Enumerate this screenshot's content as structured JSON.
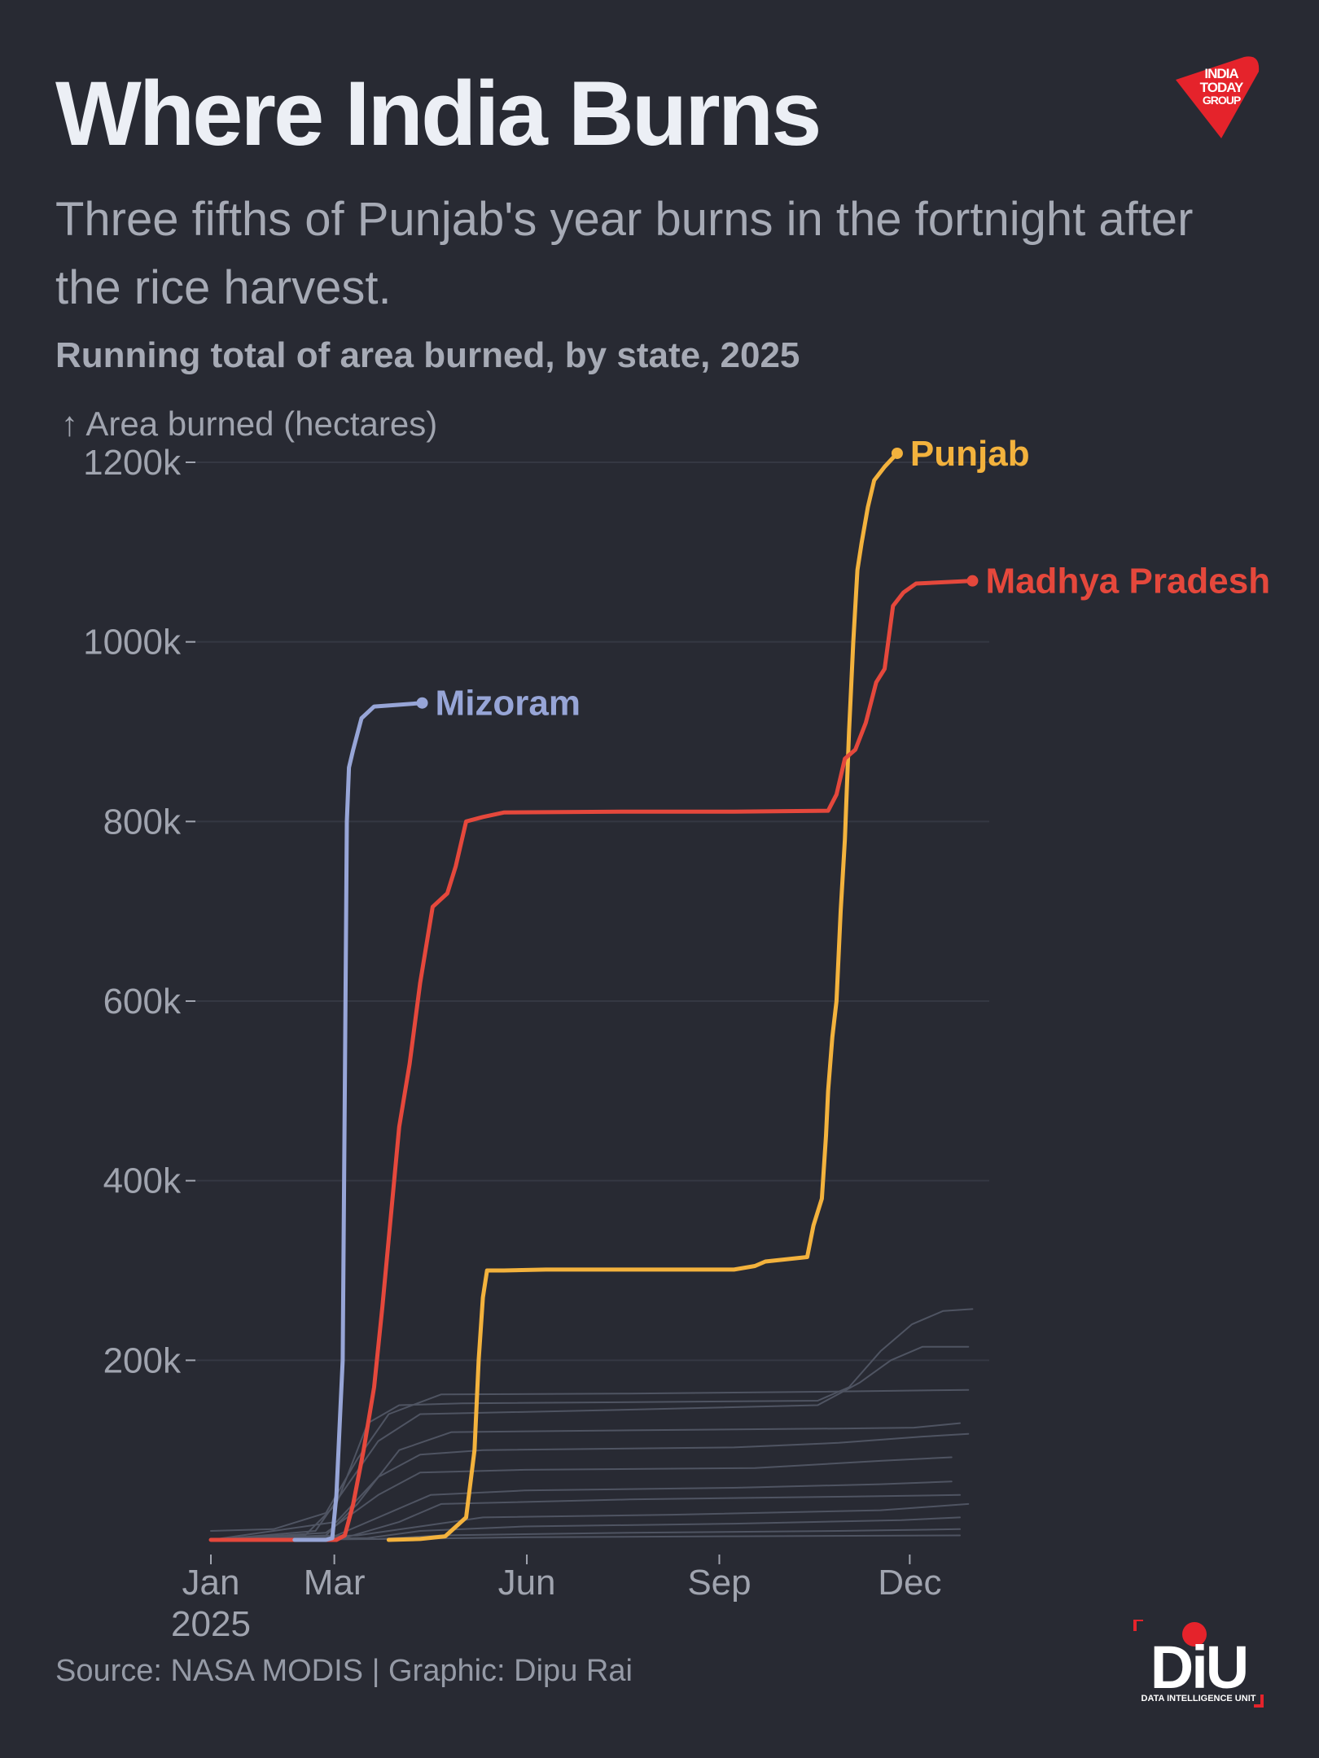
{
  "title": "Where India Burns",
  "subtitle": "Three fifths of Punjab's year burns in the fortnight after the rice harvest.",
  "chart_caption": "Running total of area burned, by state, 2025",
  "source": "Source: NASA MODIS | Graphic: Dipu Rai",
  "logos": {
    "publisher": [
      "INDIA",
      "TODAY",
      "GROUP"
    ],
    "unit_mark": "DiU",
    "unit_name": "DATA INTELLIGENCE UNIT"
  },
  "colors": {
    "background": "#282a33",
    "punjab": "#f3b23d",
    "madhya_pradesh": "#e5483c",
    "mizoram": "#97a5d7",
    "other_states": "#4f5462",
    "grid": "#353843",
    "axis_text": "#a0a4af",
    "logo_red": "#e5232b"
  },
  "chart_data": {
    "type": "line",
    "ylabel": "↑ Area burned (hectares)",
    "xlabel": "",
    "x_ticks": [
      {
        "day": 0,
        "label": "Jan",
        "sublabel": "2025"
      },
      {
        "day": 59,
        "label": "Mar"
      },
      {
        "day": 151,
        "label": "Jun"
      },
      {
        "day": 243,
        "label": "Sep"
      },
      {
        "day": 334,
        "label": "Dec"
      }
    ],
    "y_ticks": [
      200000,
      400000,
      600000,
      800000,
      1000000,
      1200000
    ],
    "y_tick_labels": [
      "200k",
      "400k",
      "600k",
      "800k",
      "1000k",
      "1200k"
    ],
    "xlim_days": [
      0,
      372
    ],
    "ylim": [
      0,
      1200000
    ],
    "grid": "horizontal",
    "x_unit": "day of year 2025",
    "series": [
      {
        "name": "Punjab",
        "color_key": "punjab",
        "label_end": true,
        "points": [
          [
            85,
            0
          ],
          [
            100,
            1000
          ],
          [
            112,
            4000
          ],
          [
            122,
            25000
          ],
          [
            126,
            100000
          ],
          [
            128,
            200000
          ],
          [
            130,
            270000
          ],
          [
            132,
            300000
          ],
          [
            140,
            300000
          ],
          [
            160,
            301000
          ],
          [
            200,
            301000
          ],
          [
            250,
            301000
          ],
          [
            260,
            305000
          ],
          [
            265,
            310000
          ],
          [
            285,
            315000
          ],
          [
            288,
            350000
          ],
          [
            292,
            380000
          ],
          [
            294,
            450000
          ],
          [
            295,
            500000
          ],
          [
            297,
            560000
          ],
          [
            299,
            600000
          ],
          [
            301,
            700000
          ],
          [
            303,
            780000
          ],
          [
            305,
            900000
          ],
          [
            307,
            1000000
          ],
          [
            309,
            1080000
          ],
          [
            311,
            1110000
          ],
          [
            314,
            1150000
          ],
          [
            317,
            1180000
          ],
          [
            322,
            1195000
          ],
          [
            328,
            1210000
          ]
        ]
      },
      {
        "name": "Madhya Pradesh",
        "color_key": "madhya_pradesh",
        "label_end": true,
        "points": [
          [
            0,
            0
          ],
          [
            60,
            0
          ],
          [
            64,
            5000
          ],
          [
            68,
            40000
          ],
          [
            73,
            100000
          ],
          [
            78,
            170000
          ],
          [
            82,
            260000
          ],
          [
            86,
            360000
          ],
          [
            90,
            460000
          ],
          [
            95,
            530000
          ],
          [
            100,
            620000
          ],
          [
            106,
            705000
          ],
          [
            113,
            720000
          ],
          [
            117,
            750000
          ],
          [
            122,
            800000
          ],
          [
            130,
            805000
          ],
          [
            140,
            810000
          ],
          [
            200,
            811000
          ],
          [
            250,
            811000
          ],
          [
            295,
            812000
          ],
          [
            299,
            830000
          ],
          [
            303,
            870000
          ],
          [
            308,
            880000
          ],
          [
            313,
            910000
          ],
          [
            318,
            955000
          ],
          [
            322,
            970000
          ],
          [
            326,
            1040000
          ],
          [
            331,
            1055000
          ],
          [
            337,
            1065000
          ],
          [
            364,
            1068000
          ]
        ]
      },
      {
        "name": "Mizoram",
        "color_key": "mizoram",
        "label_end": true,
        "points": [
          [
            40,
            0
          ],
          [
            55,
            0
          ],
          [
            58,
            2000
          ],
          [
            60,
            50000
          ],
          [
            62,
            150000
          ],
          [
            63,
            200000
          ],
          [
            64,
            500000
          ],
          [
            65,
            800000
          ],
          [
            66,
            860000
          ],
          [
            68,
            880000
          ],
          [
            72,
            915000
          ],
          [
            78,
            928000
          ],
          [
            90,
            930000
          ],
          [
            101,
            932000
          ]
        ]
      },
      {
        "name": "",
        "color_key": "other_states",
        "points": [
          [
            0,
            0
          ],
          [
            45,
            5000
          ],
          [
            60,
            40000
          ],
          [
            75,
            130000
          ],
          [
            90,
            150000
          ],
          [
            120,
            152000
          ],
          [
            290,
            155000
          ],
          [
            305,
            170000
          ],
          [
            320,
            210000
          ],
          [
            335,
            240000
          ],
          [
            350,
            255000
          ],
          [
            364,
            257000
          ]
        ]
      },
      {
        "name": "",
        "color_key": "other_states",
        "points": [
          [
            0,
            0
          ],
          [
            50,
            10000
          ],
          [
            65,
            60000
          ],
          [
            80,
            110000
          ],
          [
            100,
            140000
          ],
          [
            200,
            145000
          ],
          [
            290,
            150000
          ],
          [
            310,
            175000
          ],
          [
            325,
            200000
          ],
          [
            340,
            215000
          ],
          [
            362,
            215000
          ]
        ]
      },
      {
        "name": "",
        "color_key": "other_states",
        "points": [
          [
            0,
            10000
          ],
          [
            30,
            12000
          ],
          [
            55,
            30000
          ],
          [
            70,
            90000
          ],
          [
            85,
            140000
          ],
          [
            110,
            162000
          ],
          [
            200,
            163000
          ],
          [
            290,
            165000
          ],
          [
            362,
            167000
          ]
        ]
      },
      {
        "name": "",
        "color_key": "other_states",
        "points": [
          [
            0,
            0
          ],
          [
            55,
            5000
          ],
          [
            70,
            40000
          ],
          [
            90,
            100000
          ],
          [
            115,
            120000
          ],
          [
            200,
            122000
          ],
          [
            300,
            124000
          ],
          [
            336,
            125000
          ],
          [
            358,
            130000
          ]
        ]
      },
      {
        "name": "",
        "color_key": "other_states",
        "points": [
          [
            0,
            0
          ],
          [
            60,
            20000
          ],
          [
            80,
            70000
          ],
          [
            100,
            95000
          ],
          [
            130,
            100000
          ],
          [
            250,
            103000
          ],
          [
            300,
            108000
          ],
          [
            340,
            115000
          ],
          [
            362,
            118000
          ]
        ]
      },
      {
        "name": "",
        "color_key": "other_states",
        "points": [
          [
            0,
            0
          ],
          [
            55,
            8000
          ],
          [
            80,
            50000
          ],
          [
            100,
            75000
          ],
          [
            150,
            78000
          ],
          [
            260,
            80000
          ],
          [
            320,
            88000
          ],
          [
            354,
            92000
          ]
        ]
      },
      {
        "name": "",
        "color_key": "other_states",
        "points": [
          [
            0,
            0
          ],
          [
            60,
            5000
          ],
          [
            85,
            30000
          ],
          [
            105,
            50000
          ],
          [
            150,
            55000
          ],
          [
            250,
            58000
          ],
          [
            320,
            62000
          ],
          [
            354,
            65000
          ]
        ]
      },
      {
        "name": "",
        "color_key": "other_states",
        "points": [
          [
            0,
            0
          ],
          [
            65,
            3000
          ],
          [
            90,
            20000
          ],
          [
            110,
            40000
          ],
          [
            200,
            45000
          ],
          [
            300,
            48000
          ],
          [
            358,
            50000
          ]
        ]
      },
      {
        "name": "",
        "color_key": "other_states",
        "points": [
          [
            0,
            0
          ],
          [
            70,
            5000
          ],
          [
            100,
            15000
          ],
          [
            130,
            25000
          ],
          [
            220,
            28000
          ],
          [
            320,
            33000
          ],
          [
            362,
            40000
          ]
        ]
      },
      {
        "name": "",
        "color_key": "other_states",
        "points": [
          [
            0,
            0
          ],
          [
            75,
            2000
          ],
          [
            100,
            10000
          ],
          [
            150,
            15000
          ],
          [
            250,
            18000
          ],
          [
            330,
            22000
          ],
          [
            358,
            25000
          ]
        ]
      },
      {
        "name": "",
        "color_key": "other_states",
        "points": [
          [
            0,
            0
          ],
          [
            80,
            1000
          ],
          [
            110,
            5000
          ],
          [
            200,
            8000
          ],
          [
            300,
            10000
          ],
          [
            358,
            12000
          ]
        ]
      },
      {
        "name": "",
        "color_key": "other_states",
        "points": [
          [
            0,
            0
          ],
          [
            90,
            1000
          ],
          [
            150,
            3000
          ],
          [
            250,
            4000
          ],
          [
            358,
            5000
          ]
        ]
      }
    ]
  }
}
